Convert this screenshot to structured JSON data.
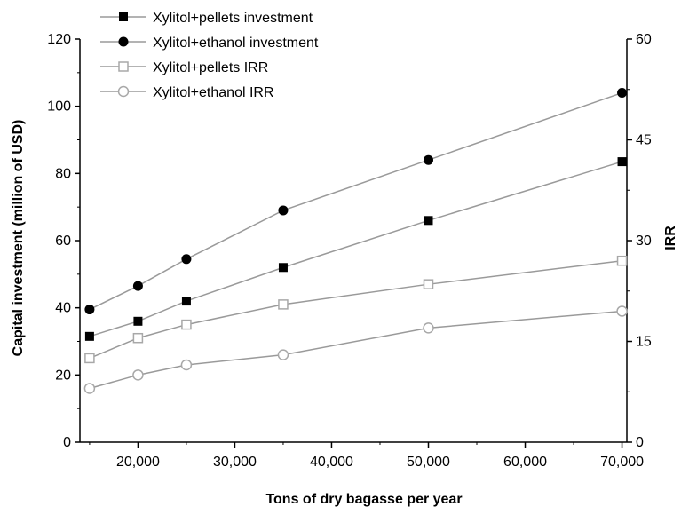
{
  "chart_data": {
    "type": "line",
    "title": "",
    "xlabel": "Tons of dry bagasse per year",
    "ylabel": "Capital investment (million of USD)",
    "y2label": "IRR",
    "x": [
      15000,
      20000,
      25000,
      35000,
      50000,
      70000
    ],
    "x_tick_labels": [
      "20,000",
      "30,000",
      "40,000",
      "50,000",
      "60,000",
      "70,000"
    ],
    "x_ticks": [
      20000,
      30000,
      40000,
      50000,
      60000,
      70000
    ],
    "xlim": [
      14000,
      70500
    ],
    "ylim": [
      0,
      120
    ],
    "y_ticks": [
      0,
      20,
      40,
      60,
      80,
      100,
      120
    ],
    "y_tick_labels": [
      "0",
      "20",
      "40",
      "60",
      "80",
      "100",
      "120"
    ],
    "y2lim": [
      0,
      60
    ],
    "y2_ticks": [
      0,
      15,
      30,
      45,
      60
    ],
    "y2_tick_labels": [
      "0",
      "15",
      "30",
      "45",
      "60"
    ],
    "grid": false,
    "legend_position": "top-left",
    "series": [
      {
        "name": "Xylitol+pellets investment",
        "axis": "left",
        "marker": "filled-square",
        "values": [
          31.5,
          36,
          42,
          52,
          66,
          83.5
        ]
      },
      {
        "name": "Xylitol+ethanol investment",
        "axis": "left",
        "marker": "filled-circle",
        "values": [
          39.5,
          46.5,
          54.5,
          69,
          84,
          104
        ]
      },
      {
        "name": "Xylitol+pellets IRR",
        "axis": "right",
        "marker": "open-square",
        "values": [
          12.5,
          15.5,
          17.5,
          20.5,
          23.5,
          27
        ]
      },
      {
        "name": "Xylitol+ethanol IRR",
        "axis": "right",
        "marker": "open-circle",
        "values": [
          8,
          10,
          11.5,
          13,
          17,
          19.5
        ]
      }
    ],
    "colors": {
      "line": "#9a9a9a",
      "marker_filled": "#000000",
      "marker_open": "#a8a8a8"
    }
  }
}
